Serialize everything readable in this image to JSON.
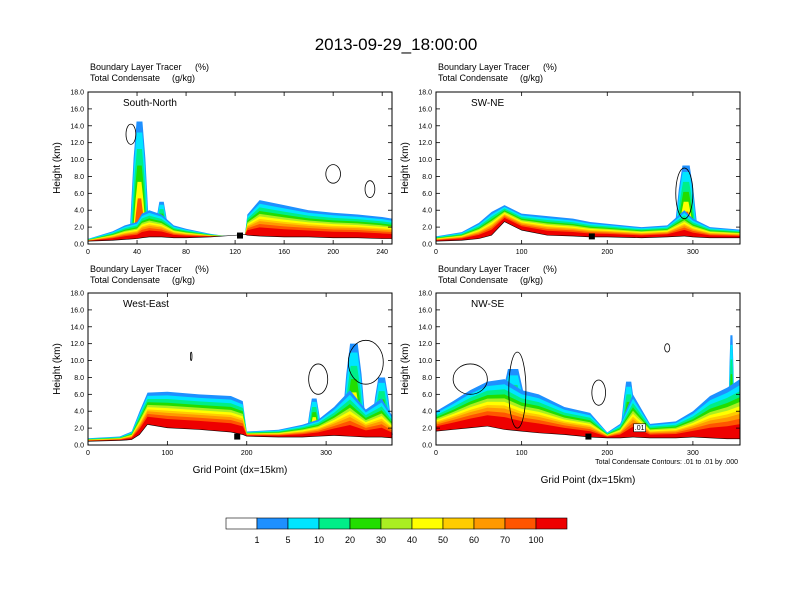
{
  "title": "2013-09-29_18:00:00",
  "colors": {
    "levels": [
      "#ffffff",
      "#1e90ff",
      "#00e5ff",
      "#00ee88",
      "#22dd00",
      "#aaee22",
      "#ffff00",
      "#ffcc00",
      "#ff9900",
      "#ff5500",
      "#ee0000"
    ],
    "contour": "#000000",
    "ground": "#000000"
  },
  "chart_data": [
    {
      "type": "heatmap",
      "name": "panel-south-north",
      "panel_label": "South-North",
      "left_title_1": "Boundary Layer Tracer",
      "left_unit_1": "(%)",
      "left_title_2": "Total Condensate",
      "left_unit_2": "(g/kg)",
      "xlim": [
        0,
        248
      ],
      "ylim": [
        0,
        18
      ],
      "xticks": [
        0,
        40,
        80,
        120,
        160,
        200,
        240
      ],
      "yticks": [
        "0.0",
        "2.0",
        "4.0",
        "6.0",
        "8.0",
        "10.0",
        "12.0",
        "14.0",
        "16.0",
        "18.0"
      ],
      "ylabel": "Height (km)",
      "xlabel": "",
      "profile_x": [
        0,
        20,
        30,
        40,
        44,
        50,
        60,
        70,
        80,
        100,
        120,
        128,
        130,
        140,
        160,
        180,
        200,
        220,
        240,
        248
      ],
      "profile_top_km": [
        0.6,
        1.5,
        2.2,
        2.6,
        3.6,
        4.0,
        3.5,
        2.2,
        1.8,
        1.2,
        0.8,
        1.0,
        3.5,
        5.2,
        4.6,
        4.0,
        3.7,
        3.5,
        3.2,
        3.0
      ],
      "ground_km": [
        0.3,
        0.4,
        0.5,
        0.6,
        0.7,
        0.8,
        0.8,
        0.7,
        0.7,
        0.8,
        1.0,
        1.1,
        1.0,
        0.9,
        0.8,
        0.8,
        0.7,
        0.7,
        0.6,
        0.6
      ],
      "plumes": [
        {
          "x": 42,
          "top_km": 14.5,
          "width": 8
        },
        {
          "x": 60,
          "top_km": 5.0,
          "width": 6
        }
      ],
      "contours": [
        {
          "x": 35,
          "y_km": 13.0,
          "rx": 4,
          "ry_km": 1.2
        },
        {
          "x": 200,
          "y_km": 8.3,
          "rx": 6,
          "ry_km": 1.1
        },
        {
          "x": 230,
          "y_km": 6.5,
          "rx": 4,
          "ry_km": 1.0
        }
      ],
      "markers": [
        {
          "x": 124,
          "y_km": 1.0
        }
      ]
    },
    {
      "type": "heatmap",
      "name": "panel-sw-ne",
      "panel_label": "SW-NE",
      "left_title_1": "Boundary Layer Tracer",
      "left_unit_1": "(%)",
      "left_title_2": "Total Condensate",
      "left_unit_2": "(g/kg)",
      "xlim": [
        0,
        355
      ],
      "ylim": [
        0,
        18
      ],
      "xticks": [
        0,
        100,
        200,
        300
      ],
      "yticks": [
        "0.0",
        "2.0",
        "4.0",
        "6.0",
        "8.0",
        "10.0",
        "12.0",
        "14.0",
        "16.0",
        "18.0"
      ],
      "ylabel": "Height (km)",
      "xlabel": "",
      "profile_x": [
        0,
        30,
        50,
        65,
        80,
        100,
        130,
        160,
        180,
        200,
        240,
        270,
        290,
        300,
        320,
        355
      ],
      "profile_top_km": [
        0.9,
        1.4,
        2.5,
        3.8,
        4.6,
        3.6,
        3.3,
        3.0,
        2.6,
        2.4,
        2.0,
        2.2,
        4.0,
        3.0,
        2.0,
        1.7
      ],
      "ground_km": [
        0.3,
        0.4,
        0.6,
        1.0,
        2.6,
        1.6,
        1.0,
        0.9,
        0.8,
        0.8,
        0.7,
        0.8,
        0.9,
        0.8,
        0.7,
        0.7
      ],
      "plumes": [
        {
          "x": 292,
          "top_km": 9.3,
          "width": 14
        }
      ],
      "contours": [
        {
          "x": 290,
          "y_km": 6.0,
          "rx": 10,
          "ry_km": 3.0
        }
      ],
      "markers": [
        {
          "x": 182,
          "y_km": 0.9
        }
      ]
    },
    {
      "type": "heatmap",
      "name": "panel-west-east",
      "panel_label": "West-East",
      "left_title_1": "Boundary Layer Tracer",
      "left_unit_1": "(%)",
      "left_title_2": "Total Condensate",
      "left_unit_2": "(g/kg)",
      "xlim": [
        0,
        383
      ],
      "ylim": [
        0,
        18
      ],
      "xticks": [
        0,
        100,
        200,
        300
      ],
      "yticks": [
        "0.0",
        "2.0",
        "4.0",
        "6.0",
        "8.0",
        "10.0",
        "12.0",
        "14.0",
        "16.0",
        "18.0"
      ],
      "ylabel": "Height (km)",
      "xlabel": "Grid Point (dx=15km)",
      "profile_x": [
        0,
        40,
        55,
        65,
        75,
        100,
        140,
        180,
        195,
        200,
        240,
        270,
        290,
        310,
        330,
        350,
        370,
        383
      ],
      "profile_top_km": [
        0.8,
        1.0,
        1.6,
        4.0,
        6.2,
        6.3,
        6.0,
        5.8,
        5.2,
        1.6,
        1.8,
        2.4,
        3.0,
        4.5,
        6.5,
        4.2,
        5.5,
        3.5
      ],
      "ground_km": [
        0.4,
        0.5,
        0.6,
        1.2,
        2.4,
        2.0,
        1.8,
        1.5,
        1.2,
        1.0,
        0.9,
        0.9,
        1.0,
        1.1,
        1.0,
        0.9,
        0.9,
        0.8
      ],
      "plumes": [
        {
          "x": 285,
          "top_km": 5.5,
          "width": 10
        },
        {
          "x": 335,
          "top_km": 12.0,
          "width": 16
        },
        {
          "x": 370,
          "top_km": 8.0,
          "width": 14
        }
      ],
      "contours": [
        {
          "x": 290,
          "y_km": 7.8,
          "rx": 12,
          "ry_km": 1.8
        },
        {
          "x": 350,
          "y_km": 9.8,
          "rx": 22,
          "ry_km": 2.6
        },
        {
          "x": 130,
          "y_km": 10.5,
          "rx": 1,
          "ry_km": 0.5
        }
      ],
      "markers": [
        {
          "x": 188,
          "y_km": 1.0
        }
      ]
    },
    {
      "type": "heatmap",
      "name": "panel-nw-se",
      "panel_label": "NW-SE",
      "left_title_1": "Boundary Layer Tracer",
      "left_unit_1": "(%)",
      "left_title_2": "Total Condensate",
      "left_unit_2": "(g/kg)",
      "xlim": [
        0,
        355
      ],
      "ylim": [
        0,
        18
      ],
      "xticks": [
        0,
        100,
        200,
        300
      ],
      "yticks": [
        "0.0",
        "2.0",
        "4.0",
        "6.0",
        "8.0",
        "10.0",
        "12.0",
        "14.0",
        "16.0",
        "18.0"
      ],
      "ylabel": "Height (km)",
      "xlabel": "Grid Point (dx=15km)",
      "contour_note": "Total Condensate Contours: .01 to .01 by .000",
      "contour_tag": ".01",
      "profile_x": [
        0,
        20,
        40,
        60,
        80,
        100,
        120,
        150,
        180,
        200,
        215,
        230,
        250,
        280,
        300,
        320,
        340,
        355
      ],
      "profile_top_km": [
        4.0,
        5.2,
        6.5,
        7.5,
        7.8,
        6.5,
        6.0,
        4.5,
        3.8,
        1.5,
        2.5,
        6.0,
        2.5,
        2.8,
        4.0,
        5.8,
        6.8,
        7.8
      ],
      "ground_km": [
        1.6,
        1.8,
        2.0,
        2.2,
        1.8,
        1.6,
        1.4,
        1.2,
        0.9,
        0.8,
        0.8,
        0.9,
        0.8,
        0.8,
        0.9,
        0.8,
        0.7,
        0.7
      ],
      "plumes": [
        {
          "x": 90,
          "top_km": 9.0,
          "width": 20
        },
        {
          "x": 225,
          "top_km": 7.5,
          "width": 10
        },
        {
          "x": 345,
          "top_km": 13.0,
          "width": 4
        }
      ],
      "contours": [
        {
          "x": 40,
          "y_km": 7.8,
          "rx": 20,
          "ry_km": 1.8
        },
        {
          "x": 95,
          "y_km": 6.5,
          "rx": 10,
          "ry_km": 4.5
        },
        {
          "x": 190,
          "y_km": 6.2,
          "rx": 8,
          "ry_km": 1.5
        },
        {
          "x": 270,
          "y_km": 11.5,
          "rx": 3,
          "ry_km": 0.5
        }
      ],
      "markers": [
        {
          "x": 178,
          "y_km": 1.0
        }
      ]
    }
  ],
  "colorbar": {
    "labels": [
      "1",
      "5",
      "10",
      "20",
      "30",
      "40",
      "50",
      "60",
      "70",
      "100"
    ]
  }
}
